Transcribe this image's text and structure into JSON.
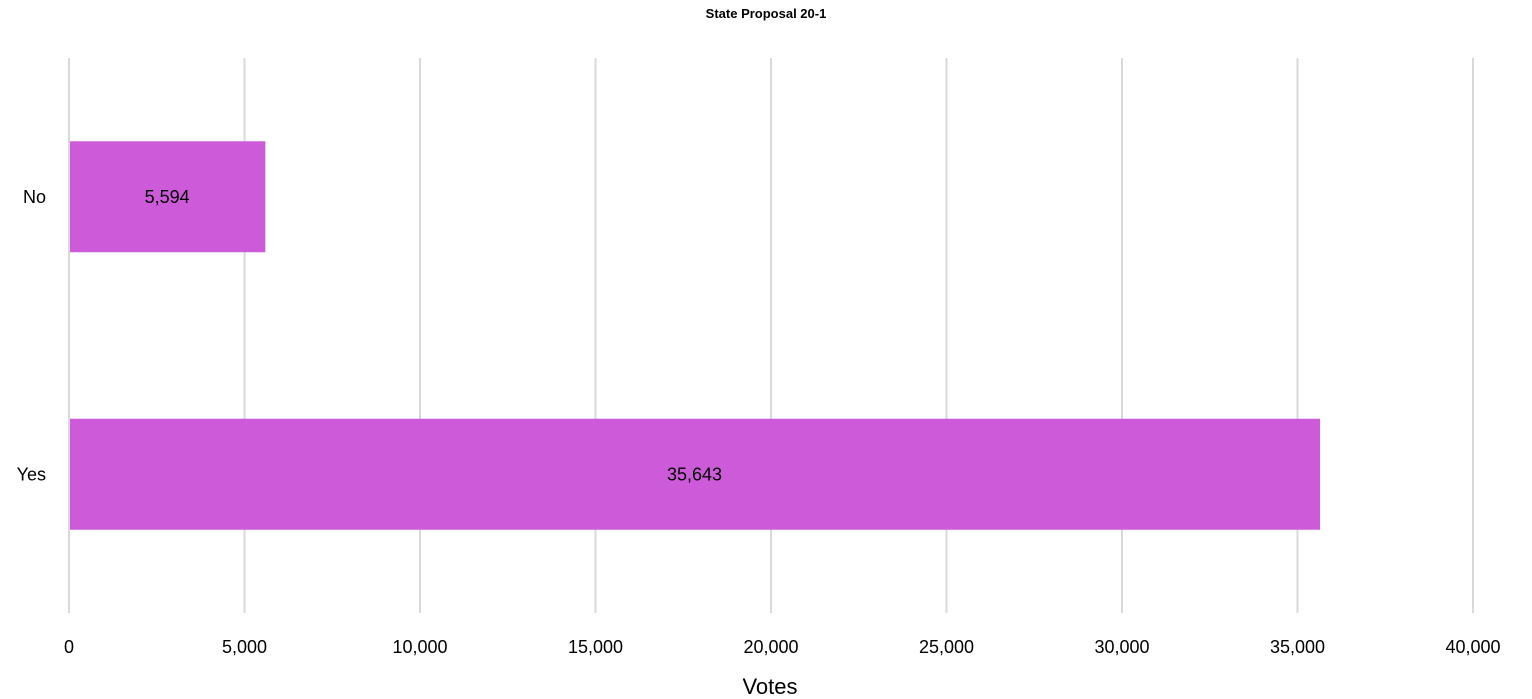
{
  "chart_data": {
    "type": "bar",
    "orientation": "horizontal",
    "title": "State Proposal 20-1",
    "xlabel": "Votes",
    "ylabel": "",
    "categories": [
      "No",
      "Yes"
    ],
    "values": [
      5594,
      35643
    ],
    "value_labels": [
      "5,594",
      "35,643"
    ],
    "xlim": [
      0,
      40000
    ],
    "xticks": [
      0,
      5000,
      10000,
      15000,
      20000,
      25000,
      30000,
      35000,
      40000
    ],
    "xtick_labels": [
      "0",
      "5,000",
      "10,000",
      "15,000",
      "20,000",
      "25,000",
      "30,000",
      "35,000",
      "40,000"
    ],
    "grid": "vertical",
    "legend": "none",
    "bar_color": "#cd5bd9",
    "grid_color": "#d9d9d9"
  }
}
